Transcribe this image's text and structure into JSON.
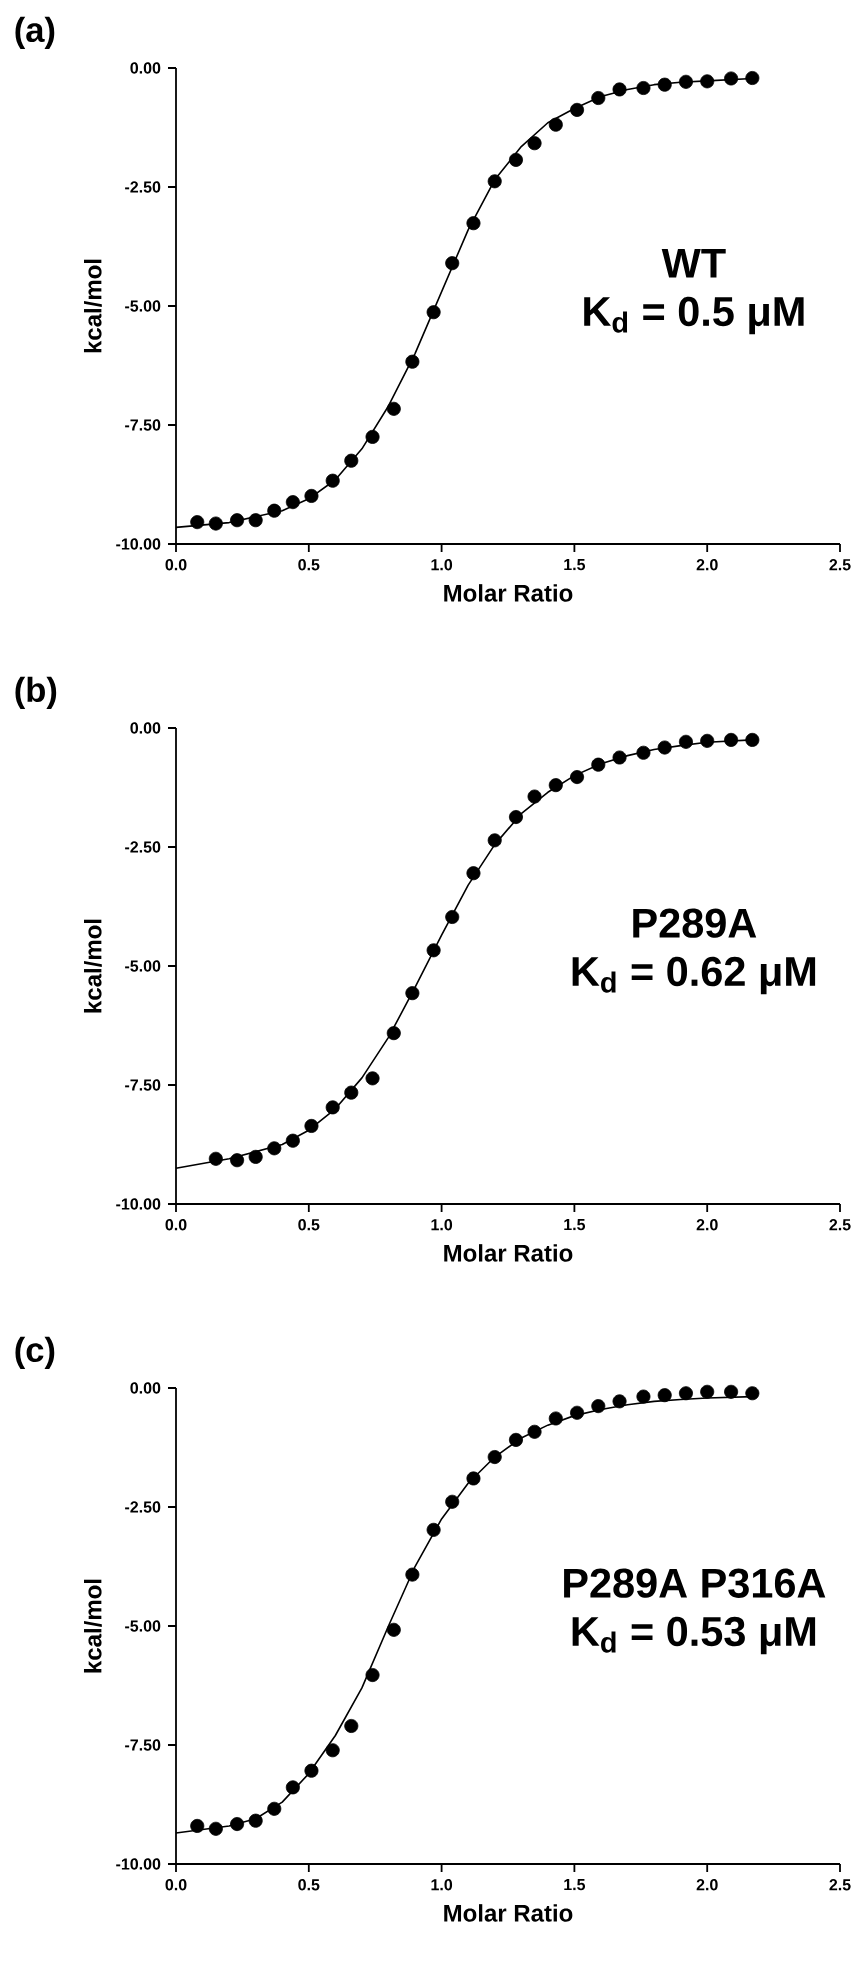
{
  "chart_data": [
    {
      "type": "scatter",
      "title": "(a)",
      "xlabel": "Molar Ratio",
      "ylabel": "kcal/mol",
      "annotations": [
        "WT",
        "K$_{d}$ = 0.5 μM"
      ],
      "marker": "circle",
      "line_style": "solid",
      "xlim": [
        0,
        2.5
      ],
      "ylim": [
        -10,
        0
      ],
      "xticks": [
        {
          "value": 0,
          "label": "0.0"
        },
        {
          "value": 0.5,
          "label": "0.5"
        },
        {
          "value": 1,
          "label": "1.0"
        },
        {
          "value": 1.5,
          "label": "1.5"
        },
        {
          "value": 2,
          "label": "2.0"
        },
        {
          "value": 2.5,
          "label": "2.5"
        }
      ],
      "yticks": [
        {
          "value": -10,
          "label": "-10.00"
        },
        {
          "value": -7.5,
          "label": "-7.50"
        },
        {
          "value": -5,
          "label": "-5.00"
        },
        {
          "value": -2.5,
          "label": "-2.50"
        },
        {
          "value": 0,
          "label": "0.00"
        }
      ],
      "series": [
        {
          "color": "#000000",
          "x": [
            0.08,
            0.15,
            0.23,
            0.3,
            0.37,
            0.44,
            0.51,
            0.59,
            0.66,
            0.74,
            0.82,
            0.89,
            0.97,
            1.04,
            1.12,
            1.2,
            1.28,
            1.35,
            1.43,
            1.51,
            1.59,
            1.67,
            1.76,
            1.84,
            1.92,
            2.0,
            2.09,
            2.17
          ],
          "values": [
            -9.54,
            -9.57,
            -9.5,
            -9.5,
            -9.3,
            -9.12,
            -8.99,
            -8.67,
            -8.25,
            -7.75,
            -7.16,
            -6.17,
            -5.13,
            -4.1,
            -3.26,
            -2.38,
            -1.93,
            -1.58,
            -1.19,
            -0.88,
            -0.63,
            -0.45,
            -0.42,
            -0.35,
            -0.29,
            -0.28,
            -0.22,
            -0.21
          ]
        },
        {
          "type": "line",
          "color": "#000000",
          "marker": "none",
          "x": [
            0,
            0.2,
            0.4,
            0.5,
            0.6,
            0.7,
            0.8,
            0.9,
            1.0,
            1.1,
            1.2,
            1.3,
            1.4,
            1.5,
            1.6,
            1.7,
            1.8,
            1.9,
            2.0,
            2.17
          ],
          "values": [
            -9.65,
            -9.55,
            -9.3,
            -9.05,
            -8.65,
            -8.0,
            -7.1,
            -6.0,
            -4.7,
            -3.4,
            -2.35,
            -1.65,
            -1.15,
            -0.85,
            -0.6,
            -0.45,
            -0.35,
            -0.3,
            -0.27,
            -0.22
          ]
        }
      ]
    },
    {
      "type": "scatter",
      "title": "(b)",
      "xlabel": "Molar Ratio",
      "ylabel": "kcal/mol",
      "annotations": [
        "P289A",
        "K$_{d}$ = 0.62 μM"
      ],
      "marker": "circle",
      "line_style": "solid",
      "xlim": [
        0,
        2.5
      ],
      "ylim": [
        -10,
        0
      ],
      "xticks": [
        {
          "value": 0,
          "label": "0.0"
        },
        {
          "value": 0.5,
          "label": "0.5"
        },
        {
          "value": 1,
          "label": "1.0"
        },
        {
          "value": 1.5,
          "label": "1.5"
        },
        {
          "value": 2,
          "label": "2.0"
        },
        {
          "value": 2.5,
          "label": "2.5"
        }
      ],
      "yticks": [
        {
          "value": -10,
          "label": "-10.00"
        },
        {
          "value": -7.5,
          "label": "-7.50"
        },
        {
          "value": -5,
          "label": "-5.00"
        },
        {
          "value": -2.5,
          "label": "-2.50"
        },
        {
          "value": 0,
          "label": "0.00"
        }
      ],
      "series": [
        {
          "color": "#000000",
          "x": [
            0.15,
            0.23,
            0.3,
            0.37,
            0.44,
            0.51,
            0.59,
            0.66,
            0.74,
            0.82,
            0.89,
            0.97,
            1.04,
            1.12,
            1.2,
            1.28,
            1.35,
            1.43,
            1.51,
            1.59,
            1.67,
            1.76,
            1.84,
            1.92,
            2.0,
            2.09,
            2.17
          ],
          "values": [
            -9.05,
            -9.08,
            -9.01,
            -8.83,
            -8.67,
            -8.36,
            -7.97,
            -7.66,
            -7.36,
            -6.41,
            -5.57,
            -4.67,
            -3.97,
            -3.05,
            -2.36,
            -1.87,
            -1.44,
            -1.2,
            -1.03,
            -0.77,
            -0.62,
            -0.52,
            -0.41,
            -0.29,
            -0.27,
            -0.25,
            -0.25
          ]
        },
        {
          "type": "line",
          "color": "#000000",
          "marker": "none",
          "x": [
            0,
            0.2,
            0.4,
            0.5,
            0.6,
            0.7,
            0.8,
            0.9,
            1.0,
            1.1,
            1.2,
            1.3,
            1.4,
            1.5,
            1.6,
            1.7,
            1.8,
            1.9,
            2.0,
            2.17
          ],
          "values": [
            -9.25,
            -9.05,
            -8.75,
            -8.45,
            -8.0,
            -7.35,
            -6.5,
            -5.45,
            -4.35,
            -3.3,
            -2.45,
            -1.8,
            -1.35,
            -1.0,
            -0.75,
            -0.58,
            -0.45,
            -0.37,
            -0.3,
            -0.25
          ]
        }
      ]
    },
    {
      "type": "scatter",
      "title": "(c)",
      "xlabel": "Molar Ratio",
      "ylabel": "kcal/mol",
      "annotations": [
        "P289A P316A",
        "K$_{d}$ = 0.53 μM"
      ],
      "marker": "circle",
      "line_style": "solid",
      "xlim": [
        0,
        2.5
      ],
      "ylim": [
        -10,
        0
      ],
      "xticks": [
        {
          "value": 0,
          "label": "0.0"
        },
        {
          "value": 0.5,
          "label": "0.5"
        },
        {
          "value": 1,
          "label": "1.0"
        },
        {
          "value": 1.5,
          "label": "1.5"
        },
        {
          "value": 2,
          "label": "2.0"
        },
        {
          "value": 2.5,
          "label": "2.5"
        }
      ],
      "yticks": [
        {
          "value": -10,
          "label": "-10.00"
        },
        {
          "value": -7.5,
          "label": "-7.50"
        },
        {
          "value": -5,
          "label": "-5.00"
        },
        {
          "value": -2.5,
          "label": "-2.50"
        },
        {
          "value": 0,
          "label": "0.00"
        }
      ],
      "series": [
        {
          "color": "#000000",
          "x": [
            0.08,
            0.15,
            0.23,
            0.3,
            0.37,
            0.44,
            0.51,
            0.59,
            0.66,
            0.74,
            0.82,
            0.89,
            0.97,
            1.04,
            1.12,
            1.2,
            1.28,
            1.35,
            1.43,
            1.51,
            1.59,
            1.67,
            1.76,
            1.84,
            1.92,
            2.0,
            2.09,
            2.17
          ],
          "values": [
            -9.2,
            -9.26,
            -9.16,
            -9.09,
            -8.84,
            -8.39,
            -8.04,
            -7.61,
            -7.1,
            -6.03,
            -5.08,
            -3.92,
            -2.98,
            -2.39,
            -1.9,
            -1.45,
            -1.09,
            -0.92,
            -0.64,
            -0.52,
            -0.38,
            -0.28,
            -0.18,
            -0.15,
            -0.11,
            -0.08,
            -0.08,
            -0.11
          ]
        },
        {
          "type": "line",
          "color": "#000000",
          "marker": "none",
          "x": [
            0,
            0.2,
            0.3,
            0.4,
            0.5,
            0.6,
            0.7,
            0.8,
            0.9,
            1.0,
            1.1,
            1.2,
            1.3,
            1.4,
            1.5,
            1.6,
            1.7,
            1.8,
            1.9,
            2.0,
            2.17
          ],
          "values": [
            -9.35,
            -9.2,
            -9.05,
            -8.7,
            -8.1,
            -7.3,
            -6.3,
            -5.0,
            -3.75,
            -2.75,
            -2.0,
            -1.45,
            -1.05,
            -0.78,
            -0.58,
            -0.45,
            -0.35,
            -0.28,
            -0.24,
            -0.21,
            -0.18
          ]
        }
      ]
    }
  ]
}
